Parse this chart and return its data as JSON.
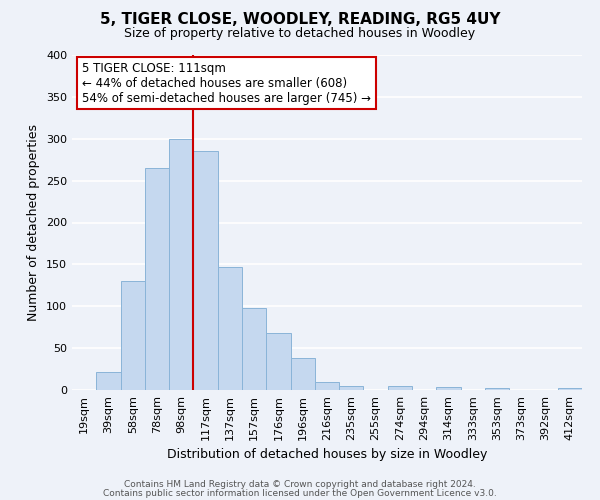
{
  "title": "5, TIGER CLOSE, WOODLEY, READING, RG5 4UY",
  "subtitle": "Size of property relative to detached houses in Woodley",
  "xlabel": "Distribution of detached houses by size in Woodley",
  "ylabel": "Number of detached properties",
  "bar_labels": [
    "19sqm",
    "39sqm",
    "58sqm",
    "78sqm",
    "98sqm",
    "117sqm",
    "137sqm",
    "157sqm",
    "176sqm",
    "196sqm",
    "216sqm",
    "235sqm",
    "255sqm",
    "274sqm",
    "294sqm",
    "314sqm",
    "333sqm",
    "353sqm",
    "373sqm",
    "392sqm",
    "412sqm"
  ],
  "bar_values": [
    0,
    22,
    130,
    265,
    300,
    285,
    147,
    98,
    68,
    38,
    10,
    5,
    0,
    5,
    0,
    3,
    0,
    2,
    0,
    0,
    2
  ],
  "bar_color": "#c5d8ef",
  "bar_edgecolor": "#8ab4d8",
  "ylim": [
    0,
    400
  ],
  "yticks": [
    0,
    50,
    100,
    150,
    200,
    250,
    300,
    350,
    400
  ],
  "vline_x": 5,
  "annotation_text_line1": "5 TIGER CLOSE: 111sqm",
  "annotation_text_line2": "← 44% of detached houses are smaller (608)",
  "annotation_text_line3": "54% of semi-detached houses are larger (745) →",
  "footer_line1": "Contains HM Land Registry data © Crown copyright and database right 2024.",
  "footer_line2": "Contains public sector information licensed under the Open Government Licence v3.0.",
  "background_color": "#eef2f9",
  "grid_color": "#ffffff",
  "vline_color": "#cc0000",
  "title_fontsize": 11,
  "subtitle_fontsize": 9,
  "ylabel_fontsize": 9,
  "xlabel_fontsize": 9,
  "tick_fontsize": 8,
  "annotation_fontsize": 8.5,
  "footer_fontsize": 6.5
}
